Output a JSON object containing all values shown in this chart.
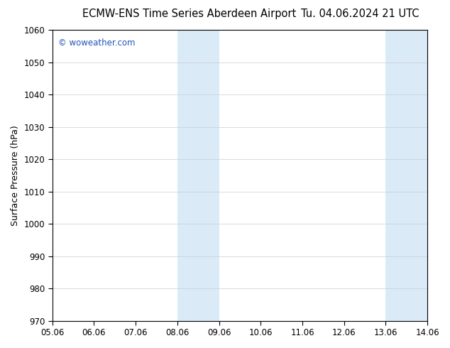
{
  "title_left": "ECMW-ENS Time Series Aberdeen Airport",
  "title_right": "Tu. 04.06.2024 21 UTC",
  "ylabel": "Surface Pressure (hPa)",
  "ylim": [
    970,
    1060
  ],
  "yticks": [
    970,
    980,
    990,
    1000,
    1010,
    1020,
    1030,
    1040,
    1050,
    1060
  ],
  "xlim": [
    0,
    9
  ],
  "xtick_labels": [
    "05.06",
    "06.06",
    "07.06",
    "08.06",
    "09.06",
    "10.06",
    "11.06",
    "12.06",
    "13.06",
    "14.06"
  ],
  "xtick_positions": [
    0,
    1,
    2,
    3,
    4,
    5,
    6,
    7,
    8,
    9
  ],
  "shaded_bands": [
    {
      "xmin": 3.0,
      "xmax": 4.0,
      "color": "#daeaf7"
    },
    {
      "xmin": 8.0,
      "xmax": 9.0,
      "color": "#daeaf7"
    }
  ],
  "watermark": "© woweather.com",
  "watermark_color": "#2255bb",
  "background_color": "#ffffff",
  "plot_bg_color": "#ffffff",
  "title_fontsize": 10.5,
  "axis_fontsize": 9,
  "tick_fontsize": 8.5,
  "grid_color": "#cccccc",
  "grid_linewidth": 0.5
}
